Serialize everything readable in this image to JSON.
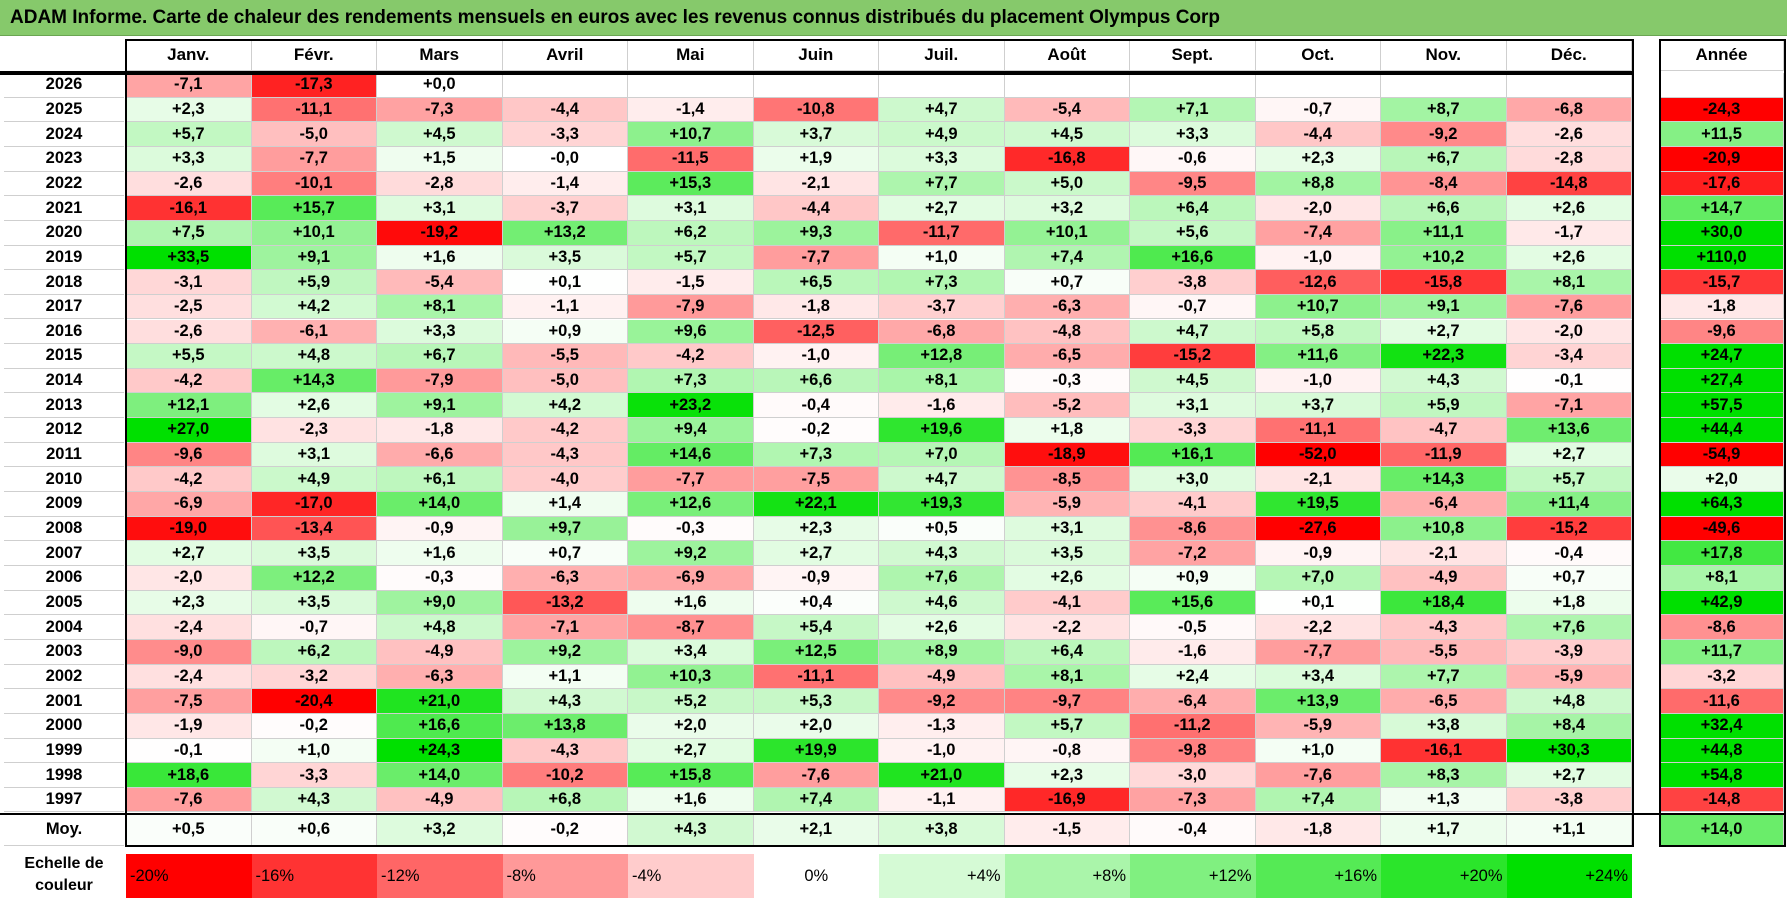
{
  "title": "ADAM Informe. Carte de chaleur des rendements mensuels en euros avec les revenus connus distribués du placement Olympus Corp",
  "months": [
    "Janv.",
    "Févr.",
    "Mars",
    "Avril",
    "Mai",
    "Juin",
    "Juil.",
    "Août",
    "Sept.",
    "Oct.",
    "Nov.",
    "Déc."
  ],
  "year_header": "Année",
  "avg_label": "Moy.",
  "chart_data": {
    "type": "heatmap",
    "title": "ADAM Informe. Carte de chaleur des rendements mensuels en euros avec les revenus connus distribués du placement Olympus Corp",
    "color_scale": {
      "min": -20,
      "max": 24,
      "negative_color": "#ff0000",
      "positive_color": "#00e000",
      "zero_color": "#ffffff"
    },
    "rows": [
      {
        "year": "2026",
        "months": [
          "-7,1",
          "-17,3",
          "+0,0",
          "",
          "",
          "",
          "",
          "",
          "",
          "",
          "",
          ""
        ],
        "annual": ""
      },
      {
        "year": "2025",
        "months": [
          "+2,3",
          "-11,1",
          "-7,3",
          "-4,4",
          "-1,4",
          "-10,8",
          "+4,7",
          "-5,4",
          "+7,1",
          "-0,7",
          "+8,7",
          "-6,8"
        ],
        "annual": "-24,3"
      },
      {
        "year": "2024",
        "months": [
          "+5,7",
          "-5,0",
          "+4,5",
          "-3,3",
          "+10,7",
          "+3,7",
          "+4,9",
          "+4,5",
          "+3,3",
          "-4,4",
          "-9,2",
          "-2,6"
        ],
        "annual": "+11,5"
      },
      {
        "year": "2023",
        "months": [
          "+3,3",
          "-7,7",
          "+1,5",
          "-0,0",
          "-11,5",
          "+1,9",
          "+3,3",
          "-16,8",
          "-0,6",
          "+2,3",
          "+6,7",
          "-2,8"
        ],
        "annual": "-20,9"
      },
      {
        "year": "2022",
        "months": [
          "-2,6",
          "-10,1",
          "-2,8",
          "-1,4",
          "+15,3",
          "-2,1",
          "+7,7",
          "+5,0",
          "-9,5",
          "+8,8",
          "-8,4",
          "-14,8"
        ],
        "annual": "-17,6"
      },
      {
        "year": "2021",
        "months": [
          "-16,1",
          "+15,7",
          "+3,1",
          "-3,7",
          "+3,1",
          "-4,4",
          "+2,7",
          "+3,2",
          "+6,4",
          "-2,0",
          "+6,6",
          "+2,6"
        ],
        "annual": "+14,7"
      },
      {
        "year": "2020",
        "months": [
          "+7,5",
          "+10,1",
          "-19,2",
          "+13,2",
          "+6,2",
          "+9,3",
          "-11,7",
          "+10,1",
          "+5,6",
          "-7,4",
          "+11,1",
          "-1,7"
        ],
        "annual": "+30,0"
      },
      {
        "year": "2019",
        "months": [
          "+33,5",
          "+9,1",
          "+1,6",
          "+3,5",
          "+5,7",
          "-7,7",
          "+1,0",
          "+7,4",
          "+16,6",
          "-1,0",
          "+10,2",
          "+2,6"
        ],
        "annual": "+110,0"
      },
      {
        "year": "2018",
        "months": [
          "-3,1",
          "+5,9",
          "-5,4",
          "+0,1",
          "-1,5",
          "+6,5",
          "+7,3",
          "+0,7",
          "-3,8",
          "-12,6",
          "-15,8",
          "+8,1"
        ],
        "annual": "-15,7"
      },
      {
        "year": "2017",
        "months": [
          "-2,5",
          "+4,2",
          "+8,1",
          "-1,1",
          "-7,9",
          "-1,8",
          "-3,7",
          "-6,3",
          "-0,7",
          "+10,7",
          "+9,1",
          "-7,6"
        ],
        "annual": "-1,8"
      },
      {
        "year": "2016",
        "months": [
          "-2,6",
          "-6,1",
          "+3,3",
          "+0,9",
          "+9,6",
          "-12,5",
          "-6,8",
          "-4,8",
          "+4,7",
          "+5,8",
          "+2,7",
          "-2,0"
        ],
        "annual": "-9,6"
      },
      {
        "year": "2015",
        "months": [
          "+5,5",
          "+4,8",
          "+6,7",
          "-5,5",
          "-4,2",
          "-1,0",
          "+12,8",
          "-6,5",
          "-15,2",
          "+11,6",
          "+22,3",
          "-3,4"
        ],
        "annual": "+24,7"
      },
      {
        "year": "2014",
        "months": [
          "-4,2",
          "+14,3",
          "-7,9",
          "-5,0",
          "+7,3",
          "+6,6",
          "+8,1",
          "-0,3",
          "+4,5",
          "-1,0",
          "+4,3",
          "-0,1"
        ],
        "annual": "+27,4"
      },
      {
        "year": "2013",
        "months": [
          "+12,1",
          "+2,6",
          "+9,1",
          "+4,2",
          "+23,2",
          "-0,4",
          "-1,6",
          "-5,2",
          "+3,1",
          "+3,7",
          "+5,9",
          "-7,1"
        ],
        "annual": "+57,5"
      },
      {
        "year": "2012",
        "months": [
          "+27,0",
          "-2,3",
          "-1,8",
          "-4,2",
          "+9,4",
          "-0,2",
          "+19,6",
          "+1,8",
          "-3,3",
          "-11,1",
          "-4,7",
          "+13,6"
        ],
        "annual": "+44,4"
      },
      {
        "year": "2011",
        "months": [
          "-9,6",
          "+3,1",
          "-6,6",
          "-4,3",
          "+14,6",
          "+7,3",
          "+7,0",
          "-18,9",
          "+16,1",
          "-52,0",
          "-11,9",
          "+2,7"
        ],
        "annual": "-54,9"
      },
      {
        "year": "2010",
        "months": [
          "-4,2",
          "+4,9",
          "+6,1",
          "-4,0",
          "-7,7",
          "-7,5",
          "+4,7",
          "-8,5",
          "+3,0",
          "-2,1",
          "+14,3",
          "+5,7"
        ],
        "annual": "+2,0"
      },
      {
        "year": "2009",
        "months": [
          "-6,9",
          "-17,0",
          "+14,0",
          "+1,4",
          "+12,6",
          "+22,1",
          "+19,3",
          "-5,9",
          "-4,1",
          "+19,5",
          "-6,4",
          "+11,4"
        ],
        "annual": "+64,3"
      },
      {
        "year": "2008",
        "months": [
          "-19,0",
          "-13,4",
          "-0,9",
          "+9,7",
          "-0,3",
          "+2,3",
          "+0,5",
          "+3,1",
          "-8,6",
          "-27,6",
          "+10,8",
          "-15,2"
        ],
        "annual": "-49,6"
      },
      {
        "year": "2007",
        "months": [
          "+2,7",
          "+3,5",
          "+1,6",
          "+0,7",
          "+9,2",
          "+2,7",
          "+4,3",
          "+3,5",
          "-7,2",
          "-0,9",
          "-2,1",
          "-0,4"
        ],
        "annual": "+17,8"
      },
      {
        "year": "2006",
        "months": [
          "-2,0",
          "+12,2",
          "-0,3",
          "-6,3",
          "-6,9",
          "-0,9",
          "+7,6",
          "+2,6",
          "+0,9",
          "+7,0",
          "-4,9",
          "+0,7"
        ],
        "annual": "+8,1"
      },
      {
        "year": "2005",
        "months": [
          "+2,3",
          "+3,5",
          "+9,0",
          "-13,2",
          "+1,6",
          "+0,4",
          "+4,6",
          "-4,1",
          "+15,6",
          "+0,1",
          "+18,4",
          "+1,8"
        ],
        "annual": "+42,9"
      },
      {
        "year": "2004",
        "months": [
          "-2,4",
          "-0,7",
          "+4,8",
          "-7,1",
          "-8,7",
          "+5,4",
          "+2,6",
          "-2,2",
          "-0,5",
          "-2,2",
          "-4,3",
          "+7,6"
        ],
        "annual": "-8,6"
      },
      {
        "year": "2003",
        "months": [
          "-9,0",
          "+6,2",
          "-4,9",
          "+9,2",
          "+3,4",
          "+12,5",
          "+8,9",
          "+6,4",
          "-1,6",
          "-7,7",
          "-5,5",
          "-3,9"
        ],
        "annual": "+11,7"
      },
      {
        "year": "2002",
        "months": [
          "-2,4",
          "-3,2",
          "-6,3",
          "+1,1",
          "+10,3",
          "-11,1",
          "-4,9",
          "+8,1",
          "+2,4",
          "+3,4",
          "+7,7",
          "-5,9"
        ],
        "annual": "-3,2"
      },
      {
        "year": "2001",
        "months": [
          "-7,5",
          "-20,4",
          "+21,0",
          "+4,3",
          "+5,2",
          "+5,3",
          "-9,2",
          "-9,7",
          "-6,4",
          "+13,9",
          "-6,5",
          "+4,8"
        ],
        "annual": "-11,6"
      },
      {
        "year": "2000",
        "months": [
          "-1,9",
          "-0,2",
          "+16,6",
          "+13,8",
          "+2,0",
          "+2,0",
          "-1,3",
          "+5,7",
          "-11,2",
          "-5,9",
          "+3,8",
          "+8,4"
        ],
        "annual": "+32,4"
      },
      {
        "year": "1999",
        "months": [
          "-0,1",
          "+1,0",
          "+24,3",
          "-4,3",
          "+2,7",
          "+19,9",
          "-1,0",
          "-0,8",
          "-9,8",
          "+1,0",
          "-16,1",
          "+30,3"
        ],
        "annual": "+44,8"
      },
      {
        "year": "1998",
        "months": [
          "+18,6",
          "-3,3",
          "+14,0",
          "-10,2",
          "+15,8",
          "-7,6",
          "+21,0",
          "+2,3",
          "-3,0",
          "-7,6",
          "+8,3",
          "+2,7"
        ],
        "annual": "+54,8"
      },
      {
        "year": "1997",
        "months": [
          "-7,6",
          "+4,3",
          "-4,9",
          "+6,8",
          "+1,6",
          "+7,4",
          "-1,1",
          "-16,9",
          "-7,3",
          "+7,4",
          "+1,3",
          "-3,8"
        ],
        "annual": "-14,8"
      }
    ],
    "average": {
      "months": [
        "+0,5",
        "+0,6",
        "+3,2",
        "-0,2",
        "+4,3",
        "+2,1",
        "+3,8",
        "-1,5",
        "-0,4",
        "-1,8",
        "+1,7",
        "+1,1"
      ],
      "annual": "+14,0"
    }
  },
  "legend": {
    "title": "Echelle de couleur",
    "labels": [
      "-20%",
      "-16%",
      "-12%",
      "-8%",
      "-4%",
      "0%",
      "+4%",
      "+8%",
      "+12%",
      "+16%",
      "+20%",
      "+24%"
    ],
    "values": [
      -20,
      -16,
      -12,
      -8,
      -4,
      0,
      4,
      8,
      12,
      16,
      20,
      24
    ]
  }
}
